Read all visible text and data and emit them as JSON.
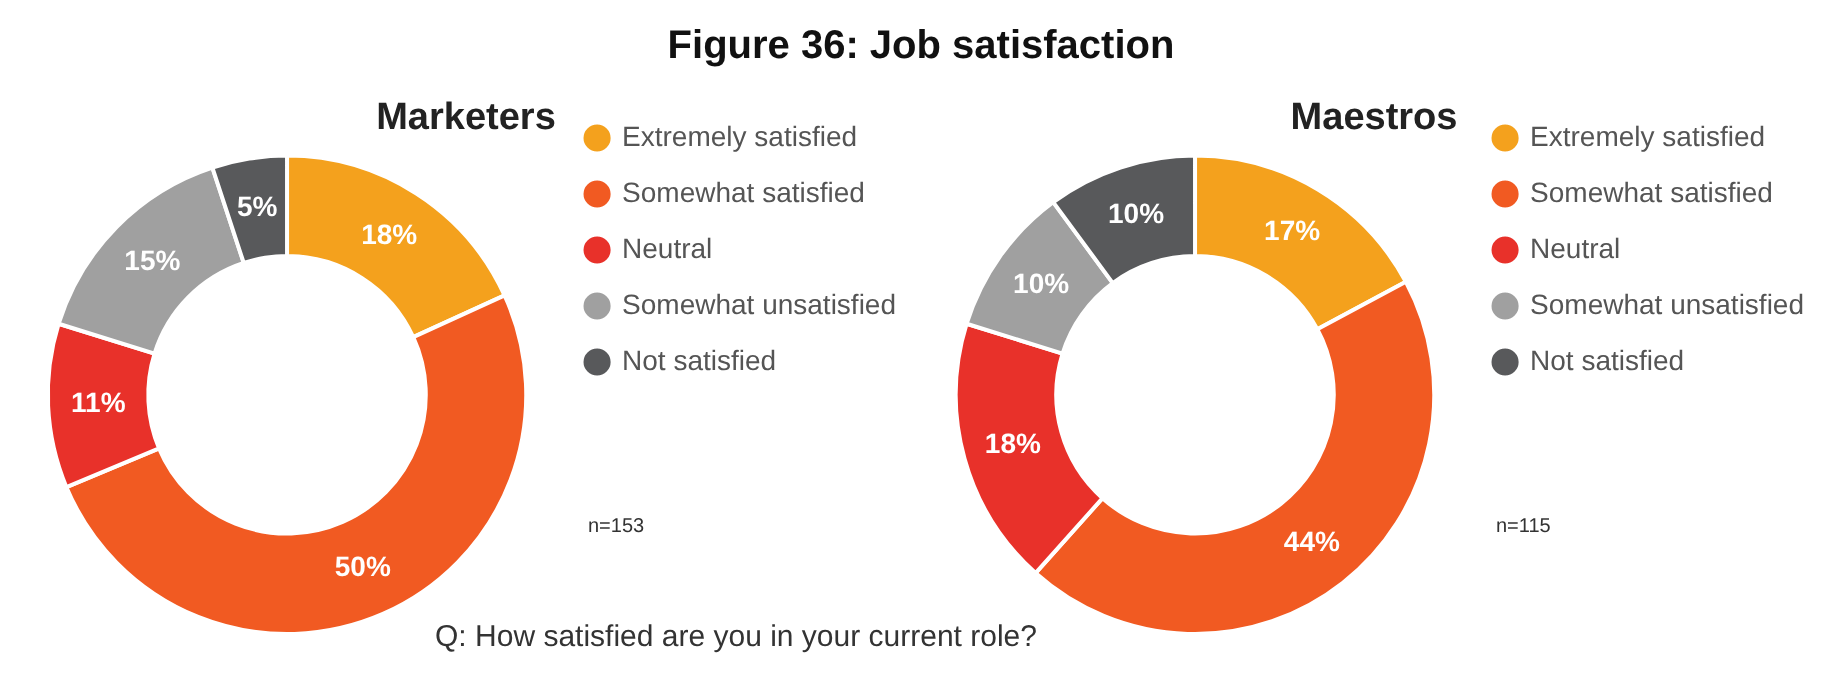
{
  "chart_data": [
    {
      "type": "other",
      "title": "Figure 36: Job satisfaction",
      "annotations": [
        "Q: How satisfied are you in your current role?"
      ]
    },
    {
      "type": "donut",
      "title": "Marketers",
      "categories": [
        "Extremely satisfied",
        "Somewhat satisfied",
        "Neutral",
        "Somewhat unsatisfied",
        "Not satisfied"
      ],
      "values": [
        18,
        50,
        11,
        15,
        5
      ],
      "value_labels": [
        "18%",
        "50%",
        "11%",
        "15%",
        "5%"
      ],
      "colors": [
        "#f4a11d",
        "#f15a22",
        "#e8312a",
        "#a0a0a0",
        "#58595b"
      ],
      "legend": "right",
      "annotations": [
        "n=153"
      ]
    },
    {
      "type": "donut",
      "title": "Maestros",
      "categories": [
        "Extremely satisfied",
        "Somewhat satisfied",
        "Neutral",
        "Somewhat unsatisfied",
        "Not satisfied"
      ],
      "values": [
        17,
        44,
        18,
        10,
        10
      ],
      "value_labels": [
        "17%",
        "44%",
        "18%",
        "10%",
        "10%"
      ],
      "colors": [
        "#f4a11d",
        "#f15a22",
        "#e8312a",
        "#a0a0a0",
        "#58595b"
      ],
      "legend": "right",
      "annotations": [
        "n=115"
      ]
    }
  ]
}
